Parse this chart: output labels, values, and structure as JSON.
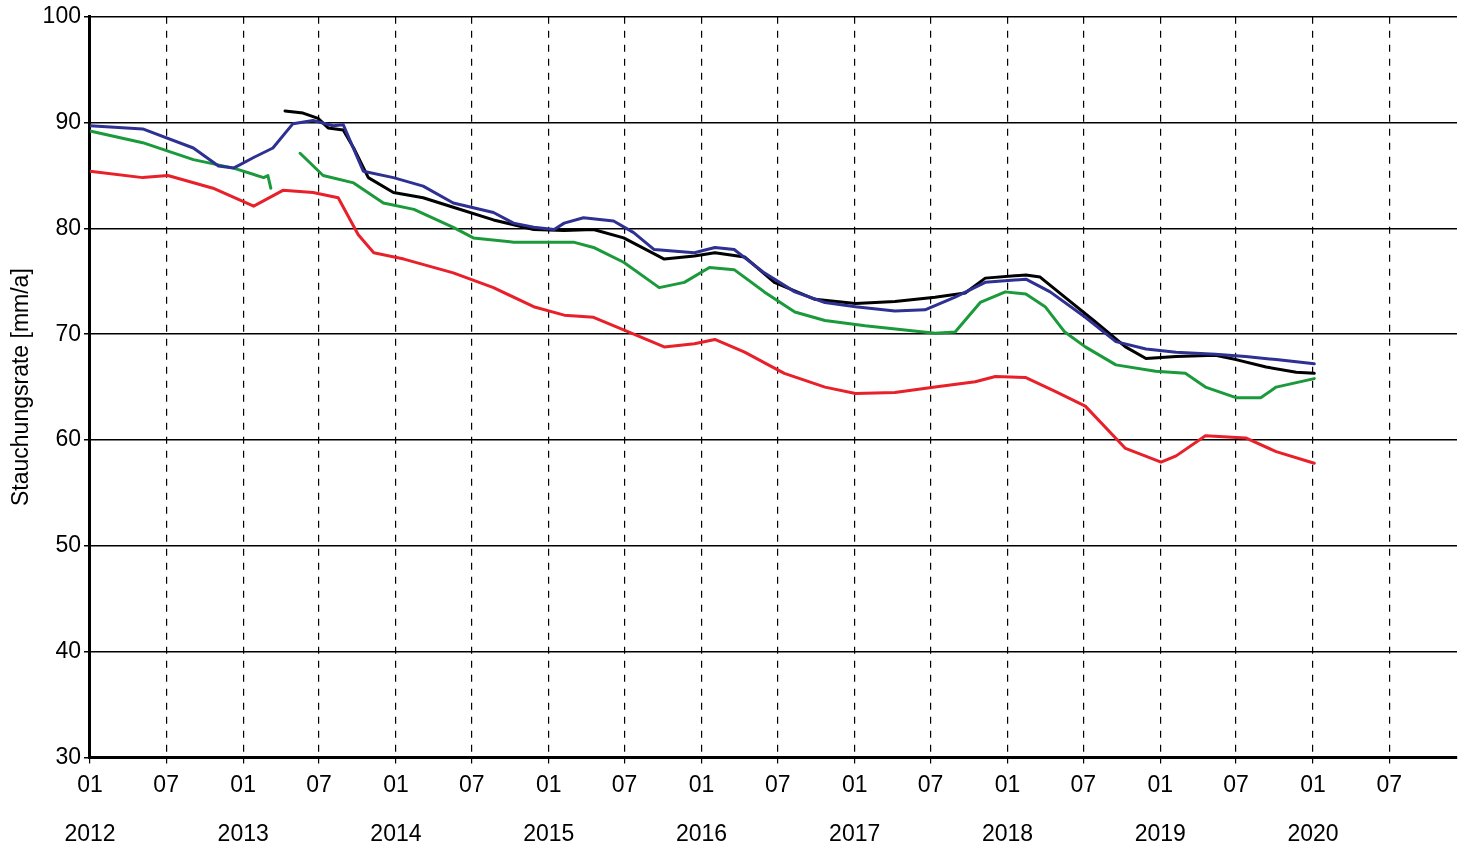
{
  "chart_data": {
    "type": "line",
    "ylabel": "Stauchungsrate [mm/a]",
    "xlim": [
      "2012-01",
      "2020-12-10"
    ],
    "xticks": [
      {
        "value": "2012-01",
        "label": "01"
      },
      {
        "value": "2012-07",
        "label": "07"
      },
      {
        "value": "2013-01",
        "label": "01"
      },
      {
        "value": "2013-07",
        "label": "07"
      },
      {
        "value": "2014-01",
        "label": "01"
      },
      {
        "value": "2014-07",
        "label": "07"
      },
      {
        "value": "2015-01",
        "label": "01"
      },
      {
        "value": "2015-07",
        "label": "07"
      },
      {
        "value": "2016-01",
        "label": "01"
      },
      {
        "value": "2016-07",
        "label": "07"
      },
      {
        "value": "2017-01",
        "label": "01"
      },
      {
        "value": "2017-07",
        "label": "07"
      },
      {
        "value": "2018-01",
        "label": "01"
      },
      {
        "value": "2018-07",
        "label": "07"
      },
      {
        "value": "2019-01",
        "label": "01"
      },
      {
        "value": "2019-07",
        "label": "07"
      },
      {
        "value": "2020-01",
        "label": "01"
      },
      {
        "value": "2020-07",
        "label": "07"
      }
    ],
    "x2lim": [
      "2012-01",
      "2020-12-10"
    ],
    "x2ticks": [
      {
        "value": "2012-01",
        "label": "2012"
      },
      {
        "value": "2013-01",
        "label": "2013"
      },
      {
        "value": "2014-01",
        "label": "2014"
      },
      {
        "value": "2015-01",
        "label": "2015"
      },
      {
        "value": "2016-01",
        "label": "2016"
      },
      {
        "value": "2017-01",
        "label": "2017"
      },
      {
        "value": "2018-01",
        "label": "2018"
      },
      {
        "value": "2019-01",
        "label": "2019"
      },
      {
        "value": "2020-01",
        "label": "2020"
      }
    ],
    "ylim": [
      30,
      100
    ],
    "yticks": [
      30,
      40,
      50,
      60,
      70,
      80,
      90,
      100
    ],
    "grid": true,
    "legend": false,
    "marker": "none",
    "line_style": "solid",
    "series": [
      {
        "color": "#2e3192",
        "x": [
          "2012-01-01",
          "2012-05-06",
          "2012-09-04",
          "2012-11-03",
          "2012-12-09",
          "2013-01-26",
          "2013-03-13",
          "2013-04-30",
          "2013-06-17",
          "2013-08-04",
          "2013-08-28",
          "2013-10-15",
          "2013-12-26",
          "2014-03-07",
          "2014-05-18",
          "2014-08-22",
          "2014-10-09",
          "2014-11-26",
          "2015-01-14",
          "2015-02-07",
          "2015-03-25",
          "2015-06-05",
          "2015-07-23",
          "2015-09-10",
          "2015-12-15",
          "2016-02-02",
          "2016-03-19",
          "2016-05-30",
          "2016-08-11",
          "2016-10-22",
          "2017-01-03",
          "2017-04-07",
          "2017-06-18",
          "2017-08-29",
          "2017-11-09",
          "2018-02-14",
          "2018-04-13",
          "2018-07-06",
          "2018-09-17",
          "2018-11-28",
          "2019-02-08",
          "2019-05-13",
          "2019-07-24",
          "2019-10-05",
          "2020-01-04"
        ],
        "values": [
          89.7,
          89.4,
          87.6,
          85.9,
          85.7,
          86.7,
          87.6,
          89.9,
          90.2,
          89.7,
          89.8,
          85.4,
          84.8,
          84.0,
          82.4,
          81.5,
          80.5,
          80.1,
          79.9,
          80.5,
          81.0,
          80.7,
          79.6,
          78.0,
          77.7,
          78.2,
          78.0,
          75.8,
          74.0,
          73.0,
          72.6,
          72.2,
          72.3,
          73.5,
          74.9,
          75.2,
          74.0,
          71.6,
          69.3,
          68.6,
          68.3,
          68.1,
          67.9,
          67.6,
          67.2
        ]
      },
      {
        "color": "#000000",
        "x": [
          "2013-04-11",
          "2013-05-24",
          "2013-06-29",
          "2013-07-23",
          "2013-08-28",
          "2013-09-22",
          "2013-10-27",
          "2013-12-26",
          "2014-03-07",
          "2014-05-18",
          "2014-08-22",
          "2014-11-26",
          "2015-02-07",
          "2015-04-18",
          "2015-06-29",
          "2015-10-04",
          "2015-12-15",
          "2016-02-02",
          "2016-04-13",
          "2016-06-23",
          "2016-09-28",
          "2017-01-03",
          "2017-04-07",
          "2017-07-12",
          "2017-09-22",
          "2017-11-09",
          "2018-02-14",
          "2018-03-20",
          "2018-05-18",
          "2018-07-29",
          "2018-10-10",
          "2018-11-28",
          "2019-02-08",
          "2019-05-13",
          "2019-07-01",
          "2019-09-11",
          "2019-11-22",
          "2020-01-04"
        ],
        "values": [
          91.1,
          90.9,
          90.4,
          89.5,
          89.3,
          87.6,
          84.8,
          83.4,
          82.9,
          82.0,
          80.8,
          79.9,
          79.8,
          79.9,
          79.1,
          77.1,
          77.4,
          77.7,
          77.3,
          74.9,
          73.3,
          72.9,
          73.1,
          73.5,
          73.9,
          75.3,
          75.6,
          75.4,
          73.5,
          71.2,
          68.8,
          67.7,
          67.9,
          68.0,
          67.6,
          66.9,
          66.4,
          66.3
        ]
      },
      {
        "color": "#1a9a3a",
        "x": [
          "2012-01-01",
          "2012-05-06",
          "2012-09-04",
          "2012-12-09",
          "2013-02-19",
          "2013-03-01",
          "2013-03-08",
          "2013-03-25",
          "2013-05-17",
          "2013-07-11",
          "2013-09-22",
          "2013-12-02",
          "2014-02-13",
          "2014-05-18",
          "2014-07-05",
          "2014-10-09",
          "2014-12-20",
          "2015-03-01",
          "2015-04-18",
          "2015-06-29",
          "2015-09-22",
          "2015-11-21",
          "2016-01-20",
          "2016-03-19",
          "2016-05-30",
          "2016-08-11",
          "2016-10-22",
          "2017-01-26",
          "2017-05-01",
          "2017-07-12",
          "2017-08-29",
          "2017-10-28",
          "2017-12-27",
          "2018-02-14",
          "2018-04-01",
          "2018-05-18",
          "2018-07-06",
          "2018-09-17",
          "2018-12-21",
          "2019-03-02",
          "2019-04-19",
          "2019-07-01",
          "2019-08-29",
          "2019-10-05",
          "2020-01-04"
        ],
        "values": [
          89.2,
          88.1,
          86.5,
          85.7,
          84.8,
          85.0,
          83.8,
          null,
          87.1,
          85.0,
          84.3,
          82.4,
          81.8,
          80.1,
          79.1,
          78.7,
          78.7,
          78.7,
          78.2,
          76.8,
          74.4,
          74.9,
          76.3,
          76.1,
          74.0,
          72.1,
          71.3,
          70.8,
          70.4,
          70.1,
          70.2,
          73.0,
          74.0,
          73.8,
          72.6,
          70.2,
          68.8,
          67.1,
          66.5,
          66.3,
          65.0,
          64.0,
          64.0,
          65.0,
          65.8
        ]
      },
      {
        "color": "#e8202a",
        "x": [
          "2012-01-01",
          "2012-05-06",
          "2012-07-05",
          "2012-10-21",
          "2013-01-26",
          "2013-04-06",
          "2013-06-17",
          "2013-08-16",
          "2013-10-03",
          "2013-11-09",
          "2014-01-20",
          "2014-05-18",
          "2014-08-22",
          "2014-11-26",
          "2015-02-07",
          "2015-04-18",
          "2015-06-29",
          "2015-10-04",
          "2015-12-15",
          "2016-02-02",
          "2016-04-13",
          "2016-07-17",
          "2016-10-22",
          "2017-01-03",
          "2017-04-07",
          "2017-07-12",
          "2017-10-16",
          "2017-12-03",
          "2018-02-14",
          "2018-04-25",
          "2018-07-06",
          "2018-10-10",
          "2019-01-03",
          "2019-02-08",
          "2019-04-19",
          "2019-07-24",
          "2019-10-05",
          "2020-01-04"
        ],
        "values": [
          85.4,
          84.8,
          85.0,
          83.8,
          82.1,
          83.6,
          83.4,
          82.9,
          79.4,
          77.7,
          77.1,
          75.8,
          74.4,
          72.6,
          71.8,
          71.6,
          70.4,
          68.8,
          69.1,
          69.5,
          68.3,
          66.3,
          65.0,
          64.4,
          64.5,
          65.0,
          65.5,
          66.0,
          65.9,
          64.6,
          63.2,
          59.2,
          57.9,
          58.5,
          60.4,
          60.2,
          58.9,
          57.8
        ]
      }
    ]
  }
}
